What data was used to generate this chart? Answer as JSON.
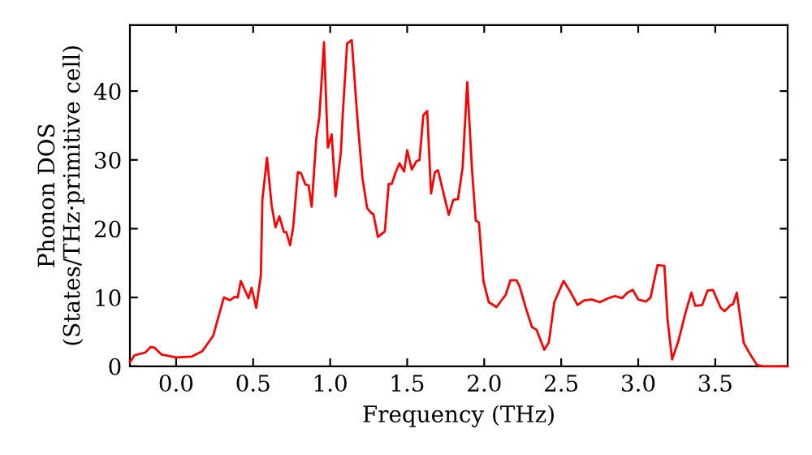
{
  "chart_data": {
    "type": "line",
    "xlabel": "Frequency (THz)",
    "ylabel": "Phonon DOS\n(States/THz·primitive cell)",
    "xlim": [
      -0.3,
      3.97
    ],
    "ylim": [
      0,
      49.6
    ],
    "xticks": [
      {
        "value": 0,
        "label": "0.0"
      },
      {
        "value": 0.5,
        "label": "0.5"
      },
      {
        "value": 1,
        "label": "1.0"
      },
      {
        "value": 1.5,
        "label": "1.5"
      },
      {
        "value": 2,
        "label": "2.0"
      },
      {
        "value": 2.5,
        "label": "2.5"
      },
      {
        "value": 3,
        "label": "3.0"
      },
      {
        "value": 3.5,
        "label": "3.5"
      }
    ],
    "yticks": [
      0,
      10,
      20,
      30,
      40
    ],
    "grid": false,
    "legend": false,
    "marker": "none",
    "line_style": "solid",
    "series": [
      {
        "color": "#ff0000",
        "x": [
          -0.3,
          -0.27,
          -0.2,
          -0.165,
          -0.14,
          -0.094,
          0,
          0.1,
          0.17,
          0.24,
          0.31,
          0.35,
          0.38,
          0.4,
          0.42,
          0.47,
          0.49,
          0.52,
          0.55,
          0.56,
          0.59,
          0.62,
          0.645,
          0.67,
          0.7,
          0.715,
          0.74,
          0.76,
          0.79,
          0.81,
          0.84,
          0.86,
          0.88,
          0.91,
          0.93,
          0.96,
          0.985,
          1.01,
          1.035,
          1.07,
          1.08,
          1.11,
          1.14,
          1.18,
          1.21,
          1.24,
          1.27,
          1.28,
          1.31,
          1.355,
          1.38,
          1.4,
          1.425,
          1.45,
          1.48,
          1.5,
          1.53,
          1.56,
          1.58,
          1.605,
          1.63,
          1.655,
          1.68,
          1.7,
          1.77,
          1.8,
          1.83,
          1.86,
          1.89,
          1.92,
          1.945,
          1.966,
          1.995,
          2.03,
          2.08,
          2.14,
          2.17,
          2.21,
          2.23,
          2.27,
          2.31,
          2.34,
          2.39,
          2.42,
          2.455,
          2.515,
          2.56,
          2.606,
          2.65,
          2.7,
          2.75,
          2.806,
          2.85,
          2.895,
          2.93,
          2.965,
          3.0,
          3.05,
          3.08,
          3.125,
          3.17,
          3.19,
          3.22,
          3.26,
          3.306,
          3.345,
          3.37,
          3.415,
          3.45,
          3.485,
          3.535,
          3.56,
          3.6,
          3.615,
          3.64,
          3.685,
          3.72,
          3.77,
          3.81,
          3.97
        ],
        "values": [
          0.6,
          1.6,
          2.0,
          2.8,
          2.7,
          1.7,
          1.3,
          1.4,
          2.2,
          4.4,
          10.0,
          9.6,
          10.1,
          10.0,
          12.4,
          9.9,
          11.4,
          8.5,
          13.2,
          24.2,
          30.3,
          23.4,
          20.2,
          21.8,
          19.5,
          19.5,
          17.6,
          20.2,
          28.2,
          28.1,
          26.4,
          26.3,
          23.2,
          33.1,
          36.3,
          47.1,
          31.8,
          33.7,
          24.7,
          31.2,
          35.9,
          46.9,
          47.4,
          35.1,
          27.3,
          23.0,
          22.2,
          22.2,
          18.8,
          19.6,
          26.5,
          26.5,
          28.2,
          29.5,
          28.3,
          31.4,
          28.6,
          29.8,
          30.0,
          36.5,
          37.1,
          25.1,
          28.2,
          28.5,
          22.0,
          24.2,
          24.3,
          28.9,
          41.3,
          28.9,
          21.2,
          20.9,
          12.4,
          9.3,
          8.6,
          10.4,
          12.5,
          12.5,
          11.6,
          8.5,
          5.7,
          5.3,
          2.4,
          3.5,
          9.3,
          12.4,
          10.8,
          8.9,
          9.6,
          9.7,
          9.3,
          9.9,
          10.2,
          9.9,
          10.7,
          11.1,
          9.7,
          9.4,
          10.0,
          14.7,
          14.6,
          6.9,
          1.0,
          3.6,
          7.7,
          10.7,
          8.8,
          8.9,
          11.0,
          11.1,
          8.5,
          8.0,
          8.9,
          9.0,
          10.7,
          3.4,
          2.0,
          0.2,
          0,
          0
        ]
      }
    ]
  }
}
